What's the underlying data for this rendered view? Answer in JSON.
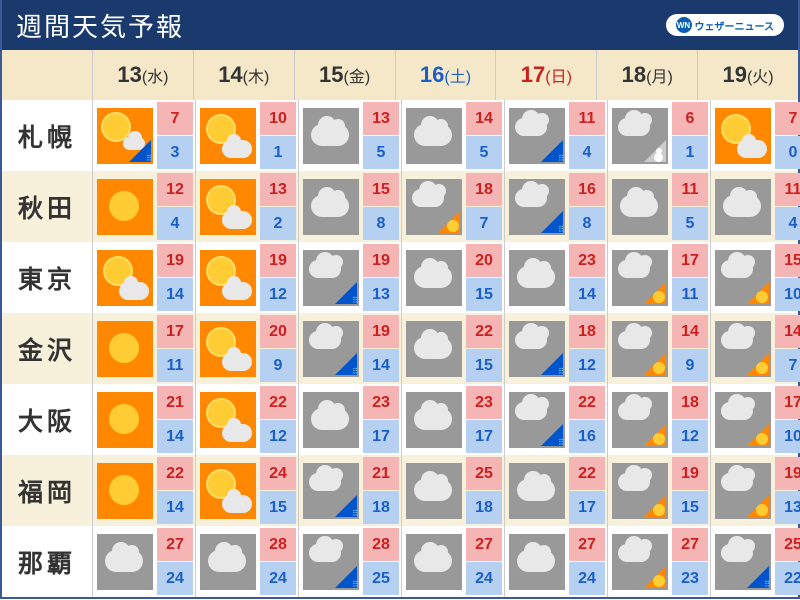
{
  "header": {
    "title": "週間天気予報",
    "brand": "ウェザーニュース",
    "brand_short": "WN"
  },
  "dates": [
    {
      "num": "13",
      "day": "(水)",
      "color": "#333333"
    },
    {
      "num": "14",
      "day": "(木)",
      "color": "#333333"
    },
    {
      "num": "15",
      "day": "(金)",
      "color": "#333333"
    },
    {
      "num": "16",
      "day": "(土)",
      "color": "#1a5fc8"
    },
    {
      "num": "17",
      "day": "(日)",
      "color": "#cc2020"
    },
    {
      "num": "18",
      "day": "(月)",
      "color": "#333333"
    },
    {
      "num": "19",
      "day": "(火)",
      "color": "#333333"
    }
  ],
  "cities": [
    {
      "name": "札幌",
      "forecasts": [
        {
          "icon": "sun_cloud_rain",
          "high": 7,
          "low": 3
        },
        {
          "icon": "sun_cloud",
          "high": 10,
          "low": 1
        },
        {
          "icon": "cloud",
          "high": 13,
          "low": 5
        },
        {
          "icon": "cloud",
          "high": 14,
          "low": 5
        },
        {
          "icon": "cloud_rain",
          "high": 11,
          "low": 4
        },
        {
          "icon": "cloud_snow",
          "high": 6,
          "low": 1
        },
        {
          "icon": "sun_cloud",
          "high": 7,
          "low": 0
        }
      ]
    },
    {
      "name": "秋田",
      "forecasts": [
        {
          "icon": "sun",
          "high": 12,
          "low": 4
        },
        {
          "icon": "sun_cloud",
          "high": 13,
          "low": 2
        },
        {
          "icon": "cloud",
          "high": 15,
          "low": 8
        },
        {
          "icon": "cloud_sun",
          "high": 18,
          "low": 7
        },
        {
          "icon": "cloud_rain",
          "high": 16,
          "low": 8
        },
        {
          "icon": "cloud",
          "high": 11,
          "low": 5
        },
        {
          "icon": "cloud",
          "high": 11,
          "low": 4
        }
      ]
    },
    {
      "name": "東京",
      "forecasts": [
        {
          "icon": "sun_cloud",
          "high": 19,
          "low": 14
        },
        {
          "icon": "sun_cloud",
          "high": 19,
          "low": 12
        },
        {
          "icon": "cloud_rain",
          "high": 19,
          "low": 13
        },
        {
          "icon": "cloud",
          "high": 20,
          "low": 15
        },
        {
          "icon": "cloud",
          "high": 23,
          "low": 14
        },
        {
          "icon": "cloud_sun",
          "high": 17,
          "low": 11
        },
        {
          "icon": "cloud_sun",
          "high": 15,
          "low": 10
        }
      ]
    },
    {
      "name": "金沢",
      "forecasts": [
        {
          "icon": "sun",
          "high": 17,
          "low": 11
        },
        {
          "icon": "sun_cloud",
          "high": 20,
          "low": 9
        },
        {
          "icon": "cloud_rain",
          "high": 19,
          "low": 14
        },
        {
          "icon": "cloud",
          "high": 22,
          "low": 15
        },
        {
          "icon": "cloud_rain",
          "high": 18,
          "low": 12
        },
        {
          "icon": "cloud_sun",
          "high": 14,
          "low": 9
        },
        {
          "icon": "cloud_sun",
          "high": 14,
          "low": 7
        }
      ]
    },
    {
      "name": "大阪",
      "forecasts": [
        {
          "icon": "sun",
          "high": 21,
          "low": 14
        },
        {
          "icon": "sun_cloud",
          "high": 22,
          "low": 12
        },
        {
          "icon": "cloud",
          "high": 23,
          "low": 17
        },
        {
          "icon": "cloud",
          "high": 23,
          "low": 17
        },
        {
          "icon": "cloud_rain",
          "high": 22,
          "low": 16
        },
        {
          "icon": "cloud_sun",
          "high": 18,
          "low": 12
        },
        {
          "icon": "cloud_sun",
          "high": 17,
          "low": 10
        }
      ]
    },
    {
      "name": "福岡",
      "forecasts": [
        {
          "icon": "sun",
          "high": 22,
          "low": 14
        },
        {
          "icon": "sun_cloud",
          "high": 24,
          "low": 15
        },
        {
          "icon": "cloud_rain",
          "high": 21,
          "low": 18
        },
        {
          "icon": "cloud",
          "high": 25,
          "low": 18
        },
        {
          "icon": "cloud",
          "high": 22,
          "low": 17
        },
        {
          "icon": "cloud_sun",
          "high": 19,
          "low": 15
        },
        {
          "icon": "cloud_sun",
          "high": 19,
          "low": 13
        }
      ]
    },
    {
      "name": "那覇",
      "forecasts": [
        {
          "icon": "cloud",
          "high": 27,
          "low": 24
        },
        {
          "icon": "cloud",
          "high": 28,
          "low": 24
        },
        {
          "icon": "cloud_rain",
          "high": 28,
          "low": 25
        },
        {
          "icon": "cloud",
          "high": 27,
          "low": 24
        },
        {
          "icon": "cloud",
          "high": 27,
          "low": 24
        },
        {
          "icon": "cloud_sun",
          "high": 27,
          "low": 23
        },
        {
          "icon": "cloud_rain",
          "high": 25,
          "low": 22
        }
      ]
    }
  ]
}
